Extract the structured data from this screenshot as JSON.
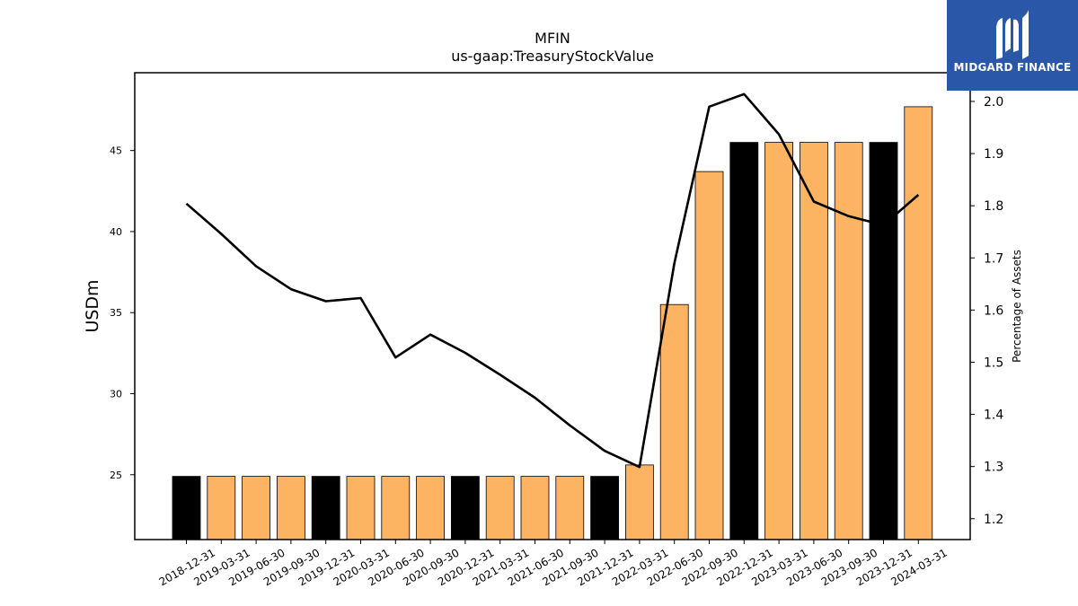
{
  "chart_data": {
    "type": "bar",
    "title": "MFIN",
    "subtitle": "us-gaap:TreasuryStockValue",
    "ylabel": "USDm",
    "y2label": "Percentage of Assets",
    "ylim": [
      21,
      49.8
    ],
    "y2lim": [
      1.16,
      2.055
    ],
    "yticks": [
      25,
      30,
      35,
      40,
      45
    ],
    "y2ticks": [
      1.2,
      1.3,
      1.4,
      1.5,
      1.6,
      1.7,
      1.8,
      1.9,
      2.0
    ],
    "categories": [
      "2018-12-31",
      "2019-03-31",
      "2019-06-30",
      "2019-09-30",
      "2019-12-31",
      "2020-03-31",
      "2020-06-30",
      "2020-09-30",
      "2020-12-31",
      "2021-03-31",
      "2021-06-30",
      "2021-09-30",
      "2021-12-31",
      "2022-03-31",
      "2022-06-30",
      "2022-09-30",
      "2022-12-31",
      "2023-03-31",
      "2023-06-30",
      "2023-09-30",
      "2023-12-31",
      "2024-03-31"
    ],
    "series": [
      {
        "type": "bar",
        "values": [
          24.9,
          24.9,
          24.9,
          24.9,
          24.9,
          24.9,
          24.9,
          24.9,
          24.9,
          24.9,
          24.9,
          24.9,
          24.9,
          25.6,
          35.5,
          43.7,
          45.5,
          45.5,
          45.5,
          45.5,
          45.5,
          47.7
        ],
        "bar_colors": [
          "#000000",
          "#fdb462",
          "#fdb462",
          "#fdb462",
          "#000000",
          "#fdb462",
          "#fdb462",
          "#fdb462",
          "#000000",
          "#fdb462",
          "#fdb462",
          "#fdb462",
          "#000000",
          "#fdb462",
          "#fdb462",
          "#fdb462",
          "#000000",
          "#fdb462",
          "#fdb462",
          "#fdb462",
          "#000000",
          "#fdb462"
        ]
      },
      {
        "type": "line",
        "axis": "right",
        "color": "#000000",
        "values": [
          1.804,
          1.746,
          1.684,
          1.64,
          1.617,
          1.623,
          1.509,
          1.553,
          1.518,
          1.476,
          1.432,
          1.379,
          1.33,
          1.299,
          1.69,
          1.99,
          2.014,
          1.937,
          1.808,
          1.78,
          1.763,
          1.821
        ]
      }
    ]
  },
  "logo": {
    "text": "MIDGARD FINANCE",
    "icon": "midgard-logo-icon",
    "color": "#2b57a8"
  }
}
